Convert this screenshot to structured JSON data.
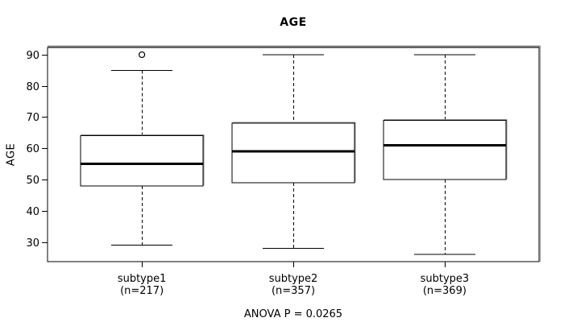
{
  "chart_data": {
    "type": "boxplot",
    "title": "AGE",
    "ylabel": "AGE",
    "footnote": "ANOVA P = 0.0265",
    "yticks": [
      30,
      40,
      50,
      60,
      70,
      80,
      90
    ],
    "ylim": [
      23.7,
      92.3
    ],
    "grid": false,
    "categories": [
      "subtype1",
      "subtype2",
      "subtype3"
    ],
    "category_counts": [
      "(n=217)",
      "(n=357)",
      "(n=369)"
    ],
    "series": [
      {
        "name": "subtype1",
        "count_label": "(n=217)",
        "lower_whisker": 29,
        "q1": 48,
        "median": 55,
        "q3": 64,
        "upper_whisker": 85,
        "outliers": [
          90
        ]
      },
      {
        "name": "subtype2",
        "count_label": "(n=357)",
        "lower_whisker": 28,
        "q1": 49,
        "median": 59,
        "q3": 68,
        "upper_whisker": 90,
        "outliers": []
      },
      {
        "name": "subtype3",
        "count_label": "(n=369)",
        "lower_whisker": 26,
        "q1": 50,
        "median": 61,
        "q3": 69,
        "upper_whisker": 90,
        "outliers": []
      }
    ],
    "colors": {
      "stroke": "#000000",
      "median": "#000000",
      "box_fill": "#ffffff",
      "frame_shadow": "#8f8f8f",
      "background": "#ffffff"
    }
  }
}
